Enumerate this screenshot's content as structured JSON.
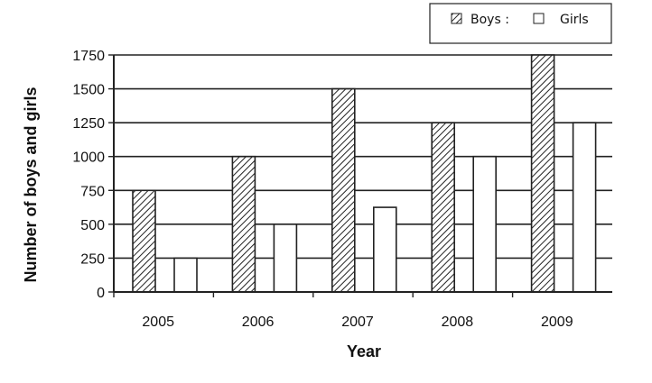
{
  "chart_data": {
    "type": "bar",
    "categories": [
      "2005",
      "2006",
      "2007",
      "2008",
      "2009"
    ],
    "series": [
      {
        "name": "Boys",
        "values": [
          750,
          1000,
          1500,
          1250,
          1750
        ],
        "pattern": "hatched"
      },
      {
        "name": "Girls",
        "values": [
          250,
          500,
          625,
          1000,
          1250
        ],
        "pattern": "empty"
      }
    ],
    "legend_labels": {
      "boys": "Boys :",
      "girls": "Girls"
    },
    "xlabel": "Year",
    "ylabel": "Number of boys and girls",
    "ylim": [
      0,
      1750
    ],
    "yticks": [
      0,
      250,
      500,
      750,
      1000,
      1250,
      1500,
      1750
    ],
    "grid": true,
    "legend_position": "top-right"
  }
}
